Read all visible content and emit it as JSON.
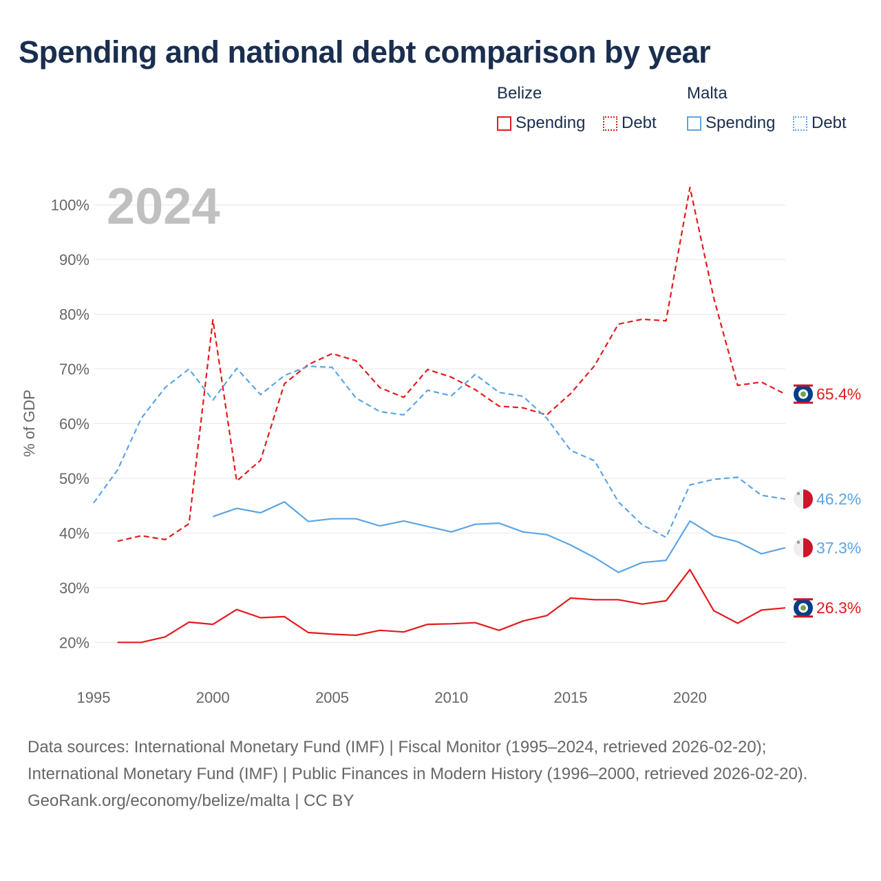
{
  "page": {
    "title": "Spending and national debt comparison by year"
  },
  "legend": {
    "groups": [
      {
        "country": "Belize",
        "spending_label": "Spending",
        "debt_label": "Debt"
      },
      {
        "country": "Malta",
        "spending_label": "Spending",
        "debt_label": "Debt"
      }
    ]
  },
  "footer": {
    "sources": "Data sources: International Monetary Fund (IMF) | Fiscal Monitor (1995–2024, retrieved 2026-02-20); International Monetary Fund (IMF) | Public Finances in Modern History (1996–2000, retrieved 2026-02-20).",
    "credit": "GeoRank.org/economy/belize/malta | CC BY"
  },
  "chart_data": {
    "type": "line",
    "title": "Spending and national debt comparison by year",
    "year_label": "2024",
    "xlabel": "",
    "ylabel": "% of GDP",
    "xlim": [
      1995,
      2024
    ],
    "ylim": [
      15,
      105
    ],
    "x_ticks": [
      1995,
      2000,
      2005,
      2010,
      2015,
      2020
    ],
    "y_ticks": [
      20,
      30,
      40,
      50,
      60,
      70,
      80,
      90,
      100
    ],
    "y_tick_labels": [
      "20%",
      "30%",
      "40%",
      "50%",
      "60%",
      "70%",
      "80%",
      "90%",
      "100%"
    ],
    "colors": {
      "belize": "#e41a1c",
      "malta": "#5aa5e6",
      "grid": "#e6e6e6",
      "axis_text": "#666666",
      "year_watermark": "#c0c0c0"
    },
    "series": [
      {
        "name": "Belize Debt",
        "country": "Belize",
        "measure": "Debt",
        "color": "#e41a1c",
        "style": "dashed",
        "x": [
          1996,
          1997,
          1998,
          1999,
          2000,
          2001,
          2002,
          2003,
          2004,
          2005,
          2006,
          2007,
          2008,
          2009,
          2010,
          2011,
          2012,
          2013,
          2014,
          2015,
          2016,
          2017,
          2018,
          2019,
          2020,
          2021,
          2022,
          2023,
          2024
        ],
        "values": [
          38.5,
          39.5,
          38.8,
          41.7,
          79.0,
          49.5,
          53.3,
          67.3,
          70.8,
          72.8,
          71.5,
          66.6,
          64.8,
          69.9,
          68.5,
          66.2,
          63.2,
          62.9,
          61.6,
          65.5,
          70.6,
          78.2,
          79.1,
          78.8,
          103.2,
          83.0,
          67.0,
          67.6,
          65.4
        ],
        "end_label": "65.4%",
        "flag_icon": "belize-flag-icon"
      },
      {
        "name": "Malta Debt",
        "country": "Malta",
        "measure": "Debt",
        "color": "#5aa5e6",
        "style": "dashed",
        "x": [
          1995,
          1996,
          1997,
          1998,
          1999,
          2000,
          2001,
          2002,
          2003,
          2004,
          2005,
          2006,
          2007,
          2008,
          2009,
          2010,
          2011,
          2012,
          2013,
          2014,
          2015,
          2016,
          2017,
          2018,
          2019,
          2020,
          2021,
          2022,
          2023,
          2024
        ],
        "values": [
          45.5,
          51.5,
          61.0,
          66.6,
          70.0,
          64.3,
          70.1,
          65.3,
          68.8,
          70.5,
          70.3,
          64.7,
          62.2,
          61.6,
          66.1,
          65.1,
          69.0,
          65.7,
          65.0,
          61.0,
          55.1,
          53.2,
          45.7,
          41.5,
          39.2,
          48.8,
          49.8,
          50.2,
          46.9,
          46.2
        ],
        "end_label": "46.2%",
        "flag_icon": "malta-flag-icon"
      },
      {
        "name": "Malta Spending",
        "country": "Malta",
        "measure": "Spending",
        "color": "#5aa5e6",
        "style": "solid",
        "x": [
          2000,
          2001,
          2002,
          2003,
          2004,
          2005,
          2006,
          2007,
          2008,
          2009,
          2010,
          2011,
          2012,
          2013,
          2014,
          2015,
          2016,
          2017,
          2018,
          2019,
          2020,
          2021,
          2022,
          2023,
          2024
        ],
        "values": [
          43.0,
          44.5,
          43.7,
          45.7,
          42.1,
          42.6,
          42.6,
          41.3,
          42.2,
          41.2,
          40.2,
          41.6,
          41.8,
          40.2,
          39.7,
          37.8,
          35.5,
          32.8,
          34.6,
          35.0,
          42.2,
          39.5,
          38.4,
          36.2,
          37.3
        ],
        "end_label": "37.3%",
        "flag_icon": "malta-flag-icon"
      },
      {
        "name": "Belize Spending",
        "country": "Belize",
        "measure": "Spending",
        "color": "#e41a1c",
        "style": "solid",
        "x": [
          1996,
          1997,
          1998,
          1999,
          2000,
          2001,
          2002,
          2003,
          2004,
          2005,
          2006,
          2007,
          2008,
          2009,
          2010,
          2011,
          2012,
          2013,
          2014,
          2015,
          2016,
          2017,
          2018,
          2019,
          2020,
          2021,
          2022,
          2023,
          2024
        ],
        "values": [
          20.0,
          20.0,
          21.0,
          23.7,
          23.3,
          26.0,
          24.5,
          24.7,
          21.8,
          21.5,
          21.3,
          22.2,
          21.9,
          23.3,
          23.4,
          23.6,
          22.2,
          23.9,
          24.9,
          28.1,
          27.8,
          27.8,
          27.0,
          27.6,
          33.3,
          25.8,
          23.5,
          25.9,
          26.3
        ],
        "end_label": "26.3%",
        "flag_icon": "belize-flag-icon"
      }
    ]
  }
}
